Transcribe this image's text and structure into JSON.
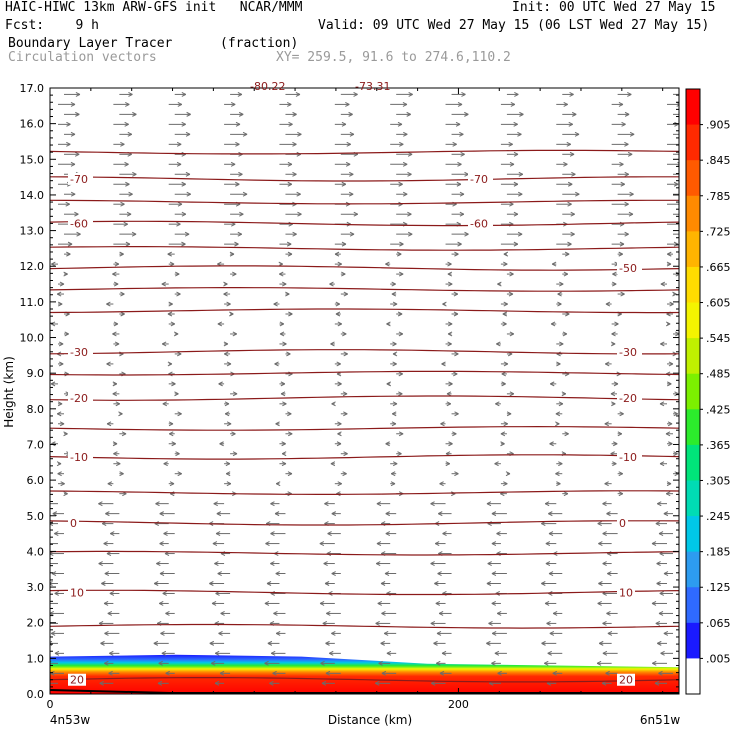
{
  "header": {
    "line1_left": "HAIC-HIWC 13km ARW-GFS init   NCAR/MMM",
    "line1_right": "Init: 00 UTC Wed 27 May 15",
    "line2_left": "Fcst:    9 h",
    "line2_right": "Valid: 09 UTC Wed 27 May 15 (06 LST Wed 27 May 15)",
    "line3_left": "Boundary Layer Tracer",
    "line3_unit": "(fraction)",
    "line4_left": "Circulation vectors",
    "line4_xy": "XY= 259.5, 91.6 to 274.6,110.2"
  },
  "chart_data": {
    "type": "heatmap",
    "xlabel": "Distance (km)",
    "ylabel": "Height (km)",
    "x_start_label": "4n53w",
    "x_end_label": "6n51w",
    "x_tick_labels": [
      "0",
      "200"
    ],
    "x_ticks_km": [
      0,
      200
    ],
    "xlim_km": [
      0,
      308
    ],
    "ylim": [
      0.0,
      17.0
    ],
    "y_tick_labels": [
      "0.0",
      "1.0",
      "2.0",
      "3.0",
      "4.0",
      "5.0",
      "6.0",
      "7.0",
      "8.0",
      "9.0",
      "10.0",
      "11.0",
      "12.0",
      "13.0",
      "14.0",
      "15.0",
      "16.0",
      "17.0"
    ],
    "colorbar": {
      "labels": [
        ".005",
        ".065",
        ".125",
        ".185",
        ".245",
        ".305",
        ".365",
        ".425",
        ".485",
        ".545",
        ".605",
        ".665",
        ".725",
        ".785",
        ".845",
        ".905"
      ],
      "colors": [
        "#ffffff",
        "#1a1aff",
        "#2f6aff",
        "#2d9cf0",
        "#00c8e8",
        "#00dcb4",
        "#00e47a",
        "#2cec2c",
        "#7cf000",
        "#c0f000",
        "#f4f400",
        "#ffdc00",
        "#ffb400",
        "#ff8a00",
        "#ff5a00",
        "#ff2a00",
        "#ff0000"
      ]
    },
    "temperature_contours": [
      {
        "label": "20",
        "height_km": 0.4
      },
      {
        "label": "10",
        "height_km": 2.85
      },
      {
        "label": "0",
        "height_km": 4.8
      },
      {
        "label": "-10",
        "height_km": 6.65
      },
      {
        "label": "-20",
        "height_km": 8.3
      },
      {
        "label": "-30",
        "height_km": 9.6
      },
      {
        "label": "-50",
        "height_km": 11.95
      },
      {
        "label": "-60",
        "height_km": 13.2
      },
      {
        "label": "-70",
        "height_km": 14.45
      }
    ],
    "top_partial_labels": [
      "-80.22",
      "-73.31"
    ],
    "tracer_layer": {
      "top_height_km": [
        1.05,
        1.1,
        1.05,
        0.85,
        0.8,
        0.75
      ],
      "value_near_surface": 1.0
    }
  }
}
